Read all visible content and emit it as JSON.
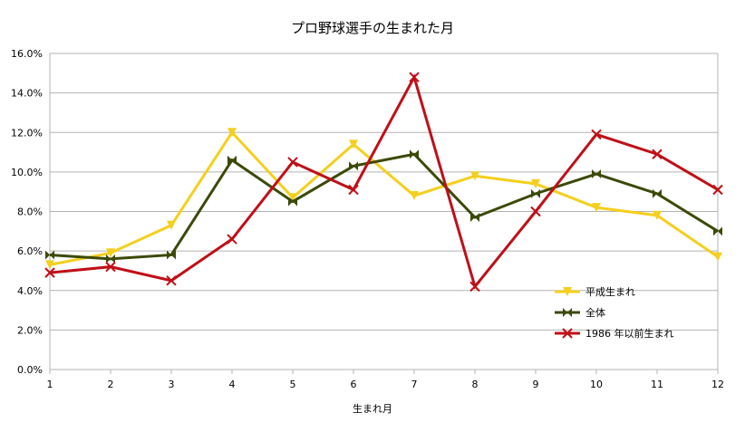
{
  "chart_data": {
    "type": "line",
    "title": "プロ野球選手の生まれた月",
    "xlabel": "生まれ月",
    "ylabel": "",
    "x": [
      1,
      2,
      3,
      4,
      5,
      6,
      7,
      8,
      9,
      10,
      11,
      12
    ],
    "x_tick_labels": [
      "1",
      "2",
      "3",
      "4",
      "5",
      "6",
      "7",
      "8",
      "9",
      "10",
      "11",
      "12"
    ],
    "ylim": [
      0,
      0.16
    ],
    "y_ticks": [
      0,
      0.02,
      0.04,
      0.06,
      0.08,
      0.1,
      0.12,
      0.14,
      0.16
    ],
    "y_tick_labels": [
      "0.0%",
      "2.0%",
      "4.0%",
      "6.0%",
      "8.0%",
      "10.0%",
      "12.0%",
      "14.0%",
      "16.0%"
    ],
    "grid": true,
    "legend_position": "bottom-right inside plot",
    "series": [
      {
        "name": "平成生まれ",
        "color": "#f5cf1e",
        "marker": "triangle-down",
        "values": [
          0.053,
          0.059,
          0.073,
          0.12,
          0.087,
          0.114,
          0.088,
          0.098,
          0.094,
          0.082,
          0.078,
          0.057
        ]
      },
      {
        "name": "全体",
        "color": "#3b4a08",
        "marker": "bowtie",
        "values": [
          0.058,
          0.056,
          0.058,
          0.106,
          0.085,
          0.103,
          0.109,
          0.077,
          0.089,
          0.099,
          0.089,
          0.07
        ]
      },
      {
        "name": "1986 年以前生まれ",
        "color": "#c00f17",
        "marker": "x",
        "values": [
          0.049,
          0.052,
          0.045,
          0.066,
          0.105,
          0.091,
          0.148,
          0.042,
          0.08,
          0.119,
          0.109,
          0.091
        ]
      }
    ]
  }
}
